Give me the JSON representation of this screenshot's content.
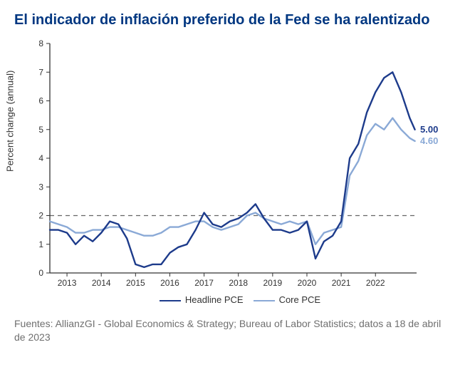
{
  "title": "El indicador de inflación preferido de la Fed se ha ralentizado",
  "y_axis_label": "Percent change (annual)",
  "source": "Fuentes: AllianzGI - Global Economics & Strategy; Bureau of Labor Statistics; datos a 18 de abril de 2023",
  "chart": {
    "type": "line",
    "background_color": "#ffffff",
    "title_color": "#003781",
    "axis_color": "#333333",
    "grid_color": "#cccccc",
    "reference_line_color": "#666666",
    "reference_value": 2,
    "xlim": [
      2012.5,
      2023.2
    ],
    "ylim": [
      0,
      8
    ],
    "ytick_step": 1,
    "xticks": [
      2013,
      2014,
      2015,
      2016,
      2017,
      2018,
      2019,
      2020,
      2021,
      2022
    ],
    "label_fontsize": 13,
    "tick_fontsize": 12,
    "line_width_main": 2.4,
    "line_width_alt": 2.4,
    "legend": {
      "items": [
        {
          "label": "Headline PCE",
          "color": "#1d3b8b"
        },
        {
          "label": "Core PCE",
          "color": "#8aa9d6"
        }
      ]
    },
    "end_labels": [
      {
        "text": "5.00",
        "color": "#1d3b8b",
        "y": 5.0
      },
      {
        "text": "4.60",
        "color": "#8aa9d6",
        "y": 4.6
      }
    ],
    "series": [
      {
        "name": "Headline PCE",
        "color": "#1d3b8b",
        "x": [
          2012.5,
          2012.75,
          2013.0,
          2013.25,
          2013.5,
          2013.75,
          2014.0,
          2014.25,
          2014.5,
          2014.75,
          2015.0,
          2015.25,
          2015.5,
          2015.75,
          2016.0,
          2016.25,
          2016.5,
          2016.75,
          2017.0,
          2017.25,
          2017.5,
          2017.75,
          2018.0,
          2018.25,
          2018.5,
          2018.75,
          2019.0,
          2019.25,
          2019.5,
          2019.75,
          2020.0,
          2020.25,
          2020.5,
          2020.75,
          2021.0,
          2021.25,
          2021.5,
          2021.75,
          2022.0,
          2022.25,
          2022.5,
          2022.75,
          2023.0,
          2023.15
        ],
        "y": [
          1.5,
          1.5,
          1.4,
          1.0,
          1.3,
          1.1,
          1.4,
          1.8,
          1.7,
          1.2,
          0.3,
          0.2,
          0.3,
          0.3,
          0.7,
          0.9,
          1.0,
          1.5,
          2.1,
          1.7,
          1.6,
          1.8,
          1.9,
          2.1,
          2.4,
          1.9,
          1.5,
          1.5,
          1.4,
          1.5,
          1.8,
          0.5,
          1.1,
          1.3,
          1.8,
          4.0,
          4.5,
          5.6,
          6.3,
          6.8,
          7.0,
          6.3,
          5.4,
          5.0
        ]
      },
      {
        "name": "Core PCE",
        "color": "#8aa9d6",
        "x": [
          2012.5,
          2012.75,
          2013.0,
          2013.25,
          2013.5,
          2013.75,
          2014.0,
          2014.25,
          2014.5,
          2014.75,
          2015.0,
          2015.25,
          2015.5,
          2015.75,
          2016.0,
          2016.25,
          2016.5,
          2016.75,
          2017.0,
          2017.25,
          2017.5,
          2017.75,
          2018.0,
          2018.25,
          2018.5,
          2018.75,
          2019.0,
          2019.25,
          2019.5,
          2019.75,
          2020.0,
          2020.25,
          2020.5,
          2020.75,
          2021.0,
          2021.25,
          2021.5,
          2021.75,
          2022.0,
          2022.25,
          2022.5,
          2022.75,
          2023.0,
          2023.15
        ],
        "y": [
          1.8,
          1.7,
          1.6,
          1.4,
          1.4,
          1.5,
          1.5,
          1.6,
          1.6,
          1.5,
          1.4,
          1.3,
          1.3,
          1.4,
          1.6,
          1.6,
          1.7,
          1.8,
          1.8,
          1.6,
          1.5,
          1.6,
          1.7,
          2.0,
          2.1,
          1.9,
          1.8,
          1.7,
          1.8,
          1.7,
          1.8,
          1.0,
          1.4,
          1.5,
          1.6,
          3.4,
          3.9,
          4.8,
          5.2,
          5.0,
          5.4,
          5.0,
          4.7,
          4.6
        ]
      }
    ]
  }
}
